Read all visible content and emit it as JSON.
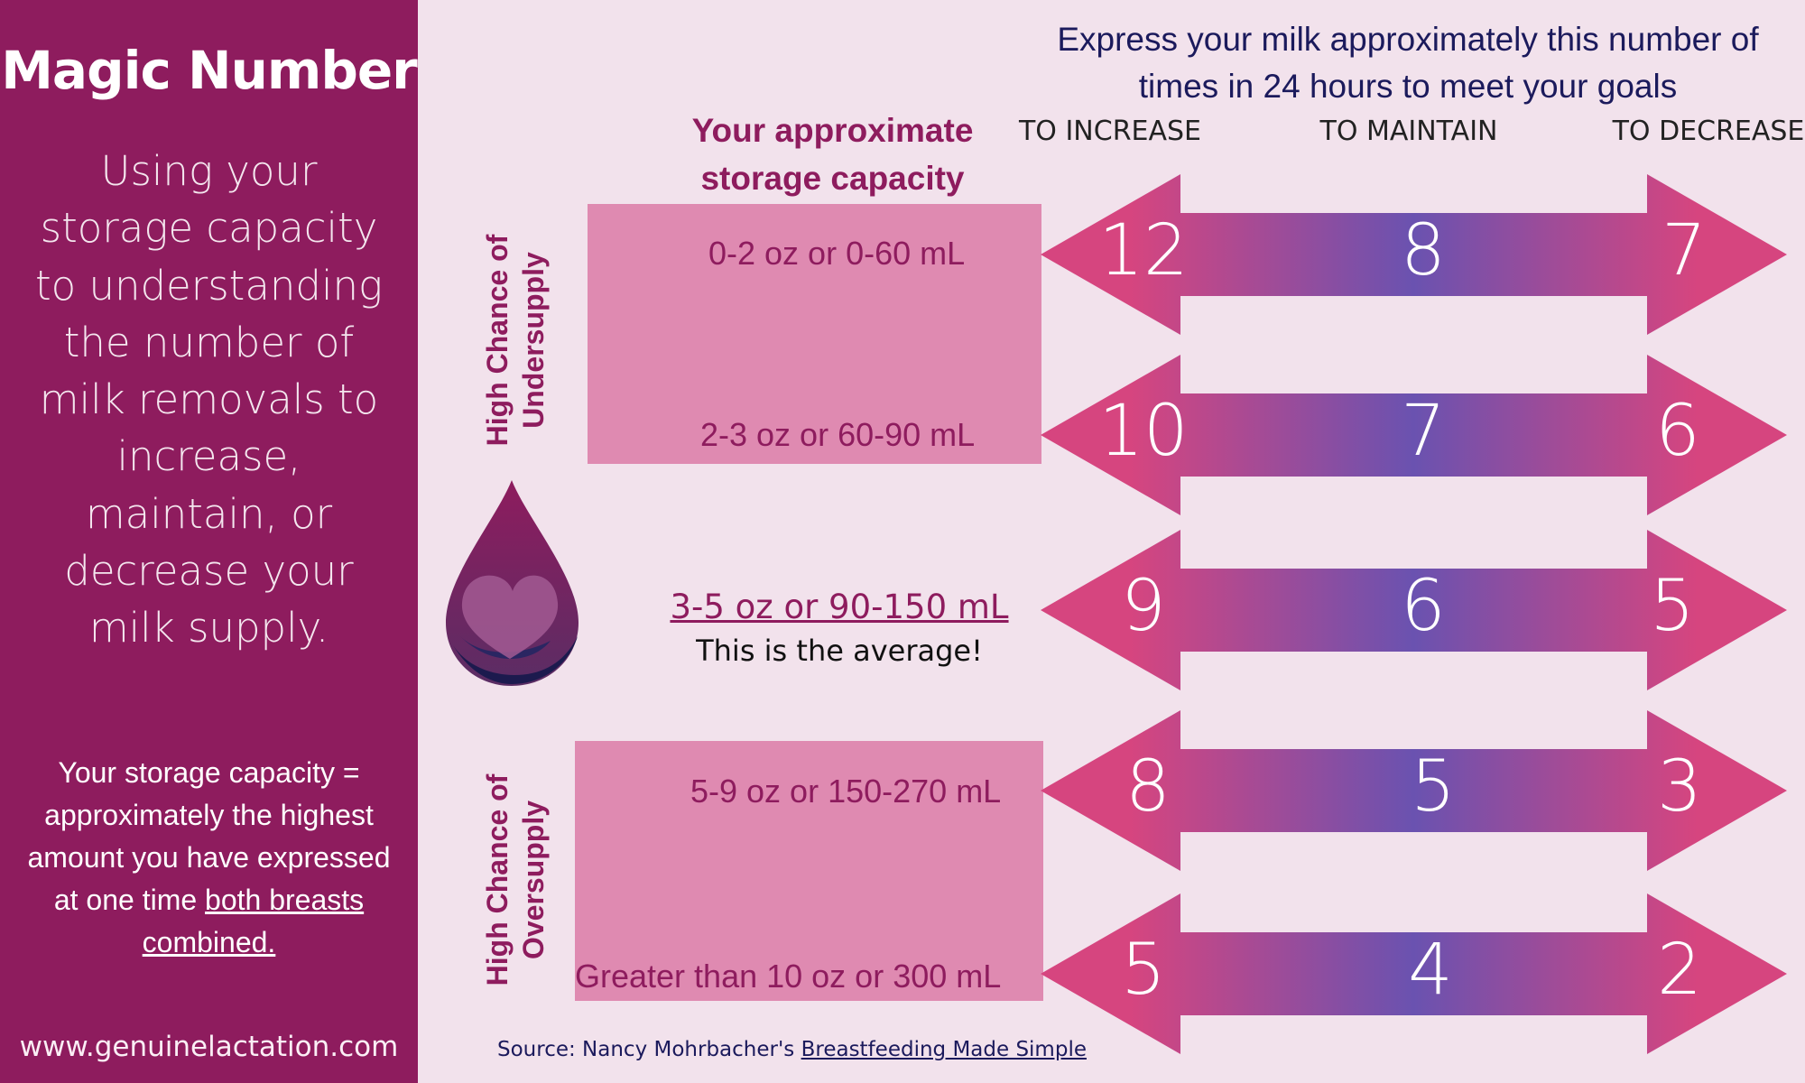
{
  "sidebar": {
    "title": "Magic Number",
    "intro": "Using your storage capacity to understanding the number of milk removals to increase, maintain, or decrease your milk supply.",
    "note_lead": "Your storage capacity = approximately the highest amount you have expressed at one time",
    "note_emph": "both breasts combined.",
    "url": "www.genuinelactation.com"
  },
  "header": {
    "title": "Express your milk approximately this number of times in 24 hours to meet your goals",
    "capacity_heading": "Your approximate storage capacity",
    "col_increase": "TO INCREASE",
    "col_maintain": "TO MAINTAIN",
    "col_decrease": "TO DECREASE"
  },
  "side_labels": {
    "undersupply": "High Chance of Undersupply",
    "oversupply": "High Chance of Oversupply"
  },
  "rows": [
    {
      "capacity": "0-2 oz or 0-60 mL",
      "increase": "12",
      "maintain": "8",
      "decrease": "7"
    },
    {
      "capacity": "2-3 oz or 60-90 mL",
      "increase": "10",
      "maintain": "7",
      "decrease": "6"
    },
    {
      "capacity": "3-5 oz or 90-150 mL",
      "note": "This is the average!",
      "increase": "9",
      "maintain": "6",
      "decrease": "5"
    },
    {
      "capacity": "5-9 oz or 150-270 mL",
      "increase": "8",
      "maintain": "5",
      "decrease": "3"
    },
    {
      "capacity": "Greater than 10 oz or 300 mL",
      "increase": "5",
      "maintain": "4",
      "decrease": "2"
    }
  ],
  "source": {
    "prefix": "Source: Nancy Mohrbacher's",
    "book": "Breastfeeding Made Simple"
  },
  "icons": {
    "drop": "milk-drop-heart-icon"
  },
  "colors": {
    "sidebar": "#8e1c5e",
    "background": "#f2e2ec",
    "capacity_box": "#df8ab1",
    "arrow_pink": "#d6457f",
    "arrow_blue": "#6a52b0",
    "header_text": "#1b1a5c"
  }
}
